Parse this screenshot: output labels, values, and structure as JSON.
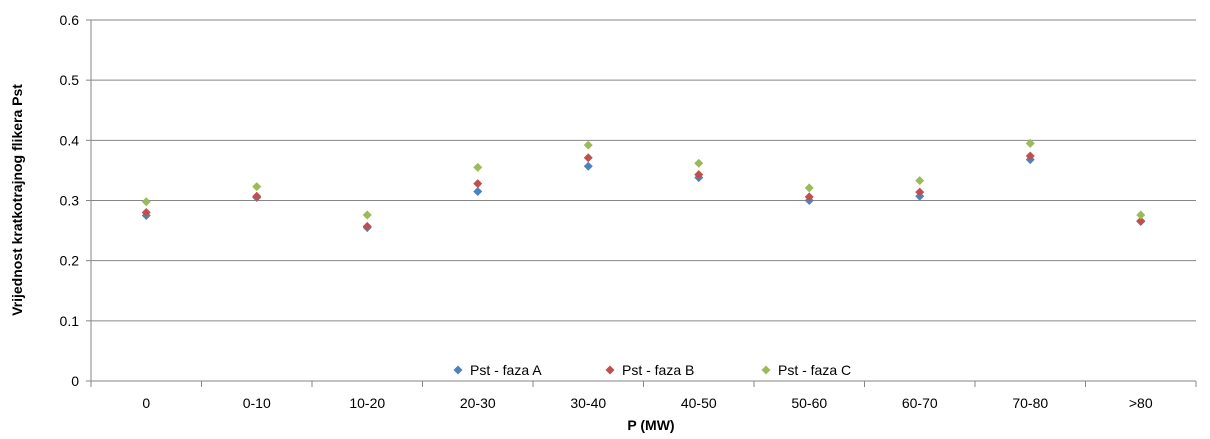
{
  "chart_data": {
    "type": "scatter",
    "title": "",
    "xlabel": "P (MW)",
    "ylabel": "Vrijednost kratkotrajnog flikera Pst",
    "categories": [
      "0",
      "0-10",
      "10-20",
      "20-30",
      "30-40",
      "40-50",
      "50-60",
      "60-70",
      "70-80",
      ">80"
    ],
    "ylim": [
      0,
      0.6
    ],
    "yticks": [
      "0",
      "0.1",
      "0.2",
      "0.3",
      "0.4",
      "0.5",
      "0.6"
    ],
    "grid": "horizontal",
    "legend_position": "bottom-center",
    "marker": "diamond",
    "series": [
      {
        "name": "Pst - faza A",
        "color": "#4F81BD",
        "values": [
          0.275,
          0.305,
          0.255,
          0.315,
          0.357,
          0.338,
          0.3,
          0.307,
          0.368,
          0.265
        ]
      },
      {
        "name": "Pst - faza B",
        "color": "#C0504D",
        "values": [
          0.28,
          0.307,
          0.257,
          0.328,
          0.371,
          0.343,
          0.306,
          0.314,
          0.374,
          0.266
        ]
      },
      {
        "name": "Pst - faza C",
        "color": "#9BBB59",
        "values": [
          0.298,
          0.323,
          0.276,
          0.355,
          0.392,
          0.362,
          0.321,
          0.333,
          0.395,
          0.276
        ]
      }
    ]
  }
}
